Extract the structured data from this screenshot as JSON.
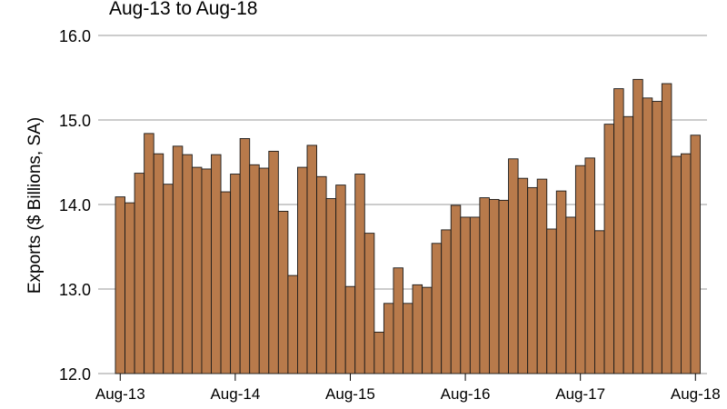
{
  "chart_data": {
    "type": "bar",
    "subtitle": "Aug-13 to Aug-18",
    "ylabel": "Exports ($ Billions, SA)",
    "xlabel": "",
    "ylim": [
      12.0,
      16.0
    ],
    "yticks": [
      "12.0",
      "13.0",
      "14.0",
      "15.0",
      "16.0"
    ],
    "xticks": [
      "Aug-13",
      "Aug-14",
      "Aug-15",
      "Aug-16",
      "Aug-17",
      "Aug-18"
    ],
    "grid": "horizontal",
    "colors": {
      "bar": "#B87A4B",
      "bar_edge": "#1a1a1a",
      "grid": "#999999",
      "text": "#000000"
    },
    "categories": [
      "Aug-13",
      "Sep-13",
      "Oct-13",
      "Nov-13",
      "Dec-13",
      "Jan-14",
      "Feb-14",
      "Mar-14",
      "Apr-14",
      "May-14",
      "Jun-14",
      "Jul-14",
      "Aug-14",
      "Sep-14",
      "Oct-14",
      "Nov-14",
      "Dec-14",
      "Jan-15",
      "Feb-15",
      "Mar-15",
      "Apr-15",
      "May-15",
      "Jun-15",
      "Jul-15",
      "Aug-15",
      "Sep-15",
      "Oct-15",
      "Nov-15",
      "Dec-15",
      "Jan-16",
      "Feb-16",
      "Mar-16",
      "Apr-16",
      "May-16",
      "Jun-16",
      "Jul-16",
      "Aug-16",
      "Sep-16",
      "Oct-16",
      "Nov-16",
      "Dec-16",
      "Jan-17",
      "Feb-17",
      "Mar-17",
      "Apr-17",
      "May-17",
      "Jun-17",
      "Jul-17",
      "Aug-17",
      "Sep-17",
      "Oct-17",
      "Nov-17",
      "Dec-17",
      "Jan-18",
      "Feb-18",
      "Mar-18",
      "Apr-18",
      "May-18",
      "Jun-18",
      "Jul-18",
      "Aug-18"
    ],
    "values": [
      14.09,
      14.02,
      14.37,
      14.84,
      14.6,
      14.24,
      14.69,
      14.59,
      14.44,
      14.42,
      14.59,
      14.15,
      14.36,
      14.78,
      14.47,
      14.43,
      14.63,
      13.92,
      13.16,
      14.44,
      14.7,
      14.33,
      14.07,
      14.23,
      13.03,
      14.36,
      13.66,
      12.49,
      12.83,
      13.25,
      12.83,
      13.05,
      13.02,
      13.54,
      13.7,
      13.99,
      13.85,
      13.85,
      14.08,
      14.06,
      14.05,
      14.54,
      14.31,
      14.2,
      14.3,
      13.71,
      14.16,
      13.85,
      14.46,
      14.55,
      13.69,
      14.95,
      15.37,
      15.04,
      15.48,
      15.26,
      15.22,
      15.43,
      14.57,
      14.6,
      14.82
    ]
  }
}
